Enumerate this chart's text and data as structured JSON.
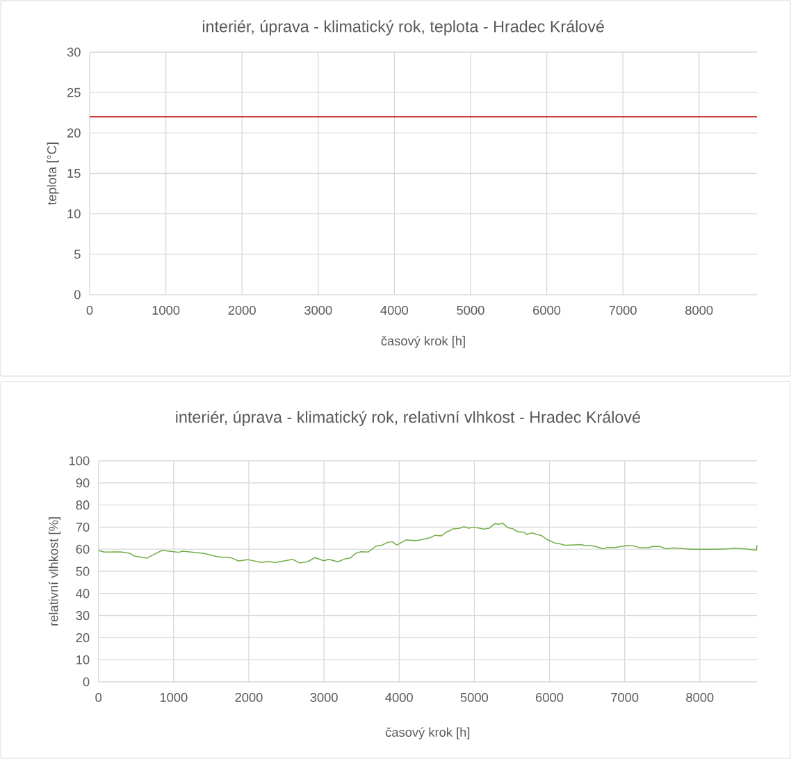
{
  "chart_data": [
    {
      "type": "line",
      "title": "interiér, úprava - klimatický rok, teplota - Hradec Králové",
      "xlabel": "časový krok [h]",
      "ylabel": "teplota [°C]",
      "x": [
        0,
        8760
      ],
      "series": [
        {
          "color": "#c00000",
          "values": [
            22,
            22
          ]
        }
      ],
      "xlim": [
        0,
        8760
      ],
      "ylim": [
        0,
        30
      ],
      "xticks": [
        0,
        1000,
        2000,
        3000,
        4000,
        5000,
        6000,
        7000,
        8000
      ],
      "yticks": [
        0,
        5,
        10,
        15,
        20,
        25,
        30
      ],
      "grid": true
    },
    {
      "type": "line",
      "title": "interiér, úprava - klimatický rok, relativní vlhkost - Hradec Králové",
      "xlabel": "časový krok [h]",
      "ylabel": "relativní vlhkost [%]",
      "x": [
        0,
        77,
        292,
        415,
        477,
        646,
        754,
        846,
        1062,
        1123,
        1400,
        1585,
        1769,
        1862,
        1985,
        2169,
        2262,
        2354,
        2585,
        2677,
        2785,
        2877,
        3000,
        3062,
        3185,
        3277,
        3354,
        3415,
        3492,
        3585,
        3692,
        3769,
        3846,
        3908,
        3969,
        4092,
        4200,
        4244,
        4402,
        4481,
        4560,
        4623,
        4718,
        4797,
        4861,
        4924,
        4987,
        5130,
        5193,
        5272,
        5320,
        5377,
        5446,
        5509,
        5573,
        5652,
        5706,
        5763,
        5889,
        5968,
        6079,
        6142,
        6206,
        6427,
        6459,
        6585,
        6712,
        6775,
        6870,
        7028,
        7123,
        7187,
        7297,
        7392,
        7472,
        7551,
        7646,
        7883,
        8199,
        8358,
        8453,
        8611,
        8753,
        8760
      ],
      "series": [
        {
          "color": "#70ad47",
          "values": [
            59.4,
            58.7,
            58.8,
            58.2,
            56.9,
            56.0,
            57.9,
            59.5,
            58.6,
            59.1,
            58.1,
            56.6,
            56.1,
            54.7,
            55.3,
            54.0,
            54.5,
            54.0,
            55.4,
            53.8,
            54.4,
            56.2,
            54.8,
            55.4,
            54.3,
            55.6,
            56.1,
            58.0,
            58.9,
            58.7,
            61.4,
            61.8,
            63.1,
            63.4,
            61.9,
            64.2,
            63.9,
            64.0,
            65.1,
            66.3,
            66.0,
            67.6,
            69.2,
            69.4,
            70.2,
            69.5,
            70.0,
            69.1,
            69.4,
            71.5,
            71.3,
            71.8,
            69.7,
            69.3,
            68.0,
            67.7,
            66.7,
            67.4,
            66.2,
            64.4,
            62.7,
            62.4,
            61.8,
            62.1,
            61.7,
            61.5,
            60.2,
            60.8,
            60.8,
            61.6,
            61.5,
            60.8,
            60.6,
            61.3,
            61.2,
            60.2,
            60.6,
            60.0,
            60.0,
            60.1,
            60.5,
            60.1,
            59.6,
            61.8
          ]
        }
      ],
      "xlim": [
        0,
        8760
      ],
      "ylim": [
        0,
        100
      ],
      "xticks": [
        0,
        1000,
        2000,
        3000,
        4000,
        5000,
        6000,
        7000,
        8000
      ],
      "yticks": [
        0,
        10,
        20,
        30,
        40,
        50,
        60,
        70,
        80,
        90,
        100
      ],
      "grid": true
    }
  ]
}
